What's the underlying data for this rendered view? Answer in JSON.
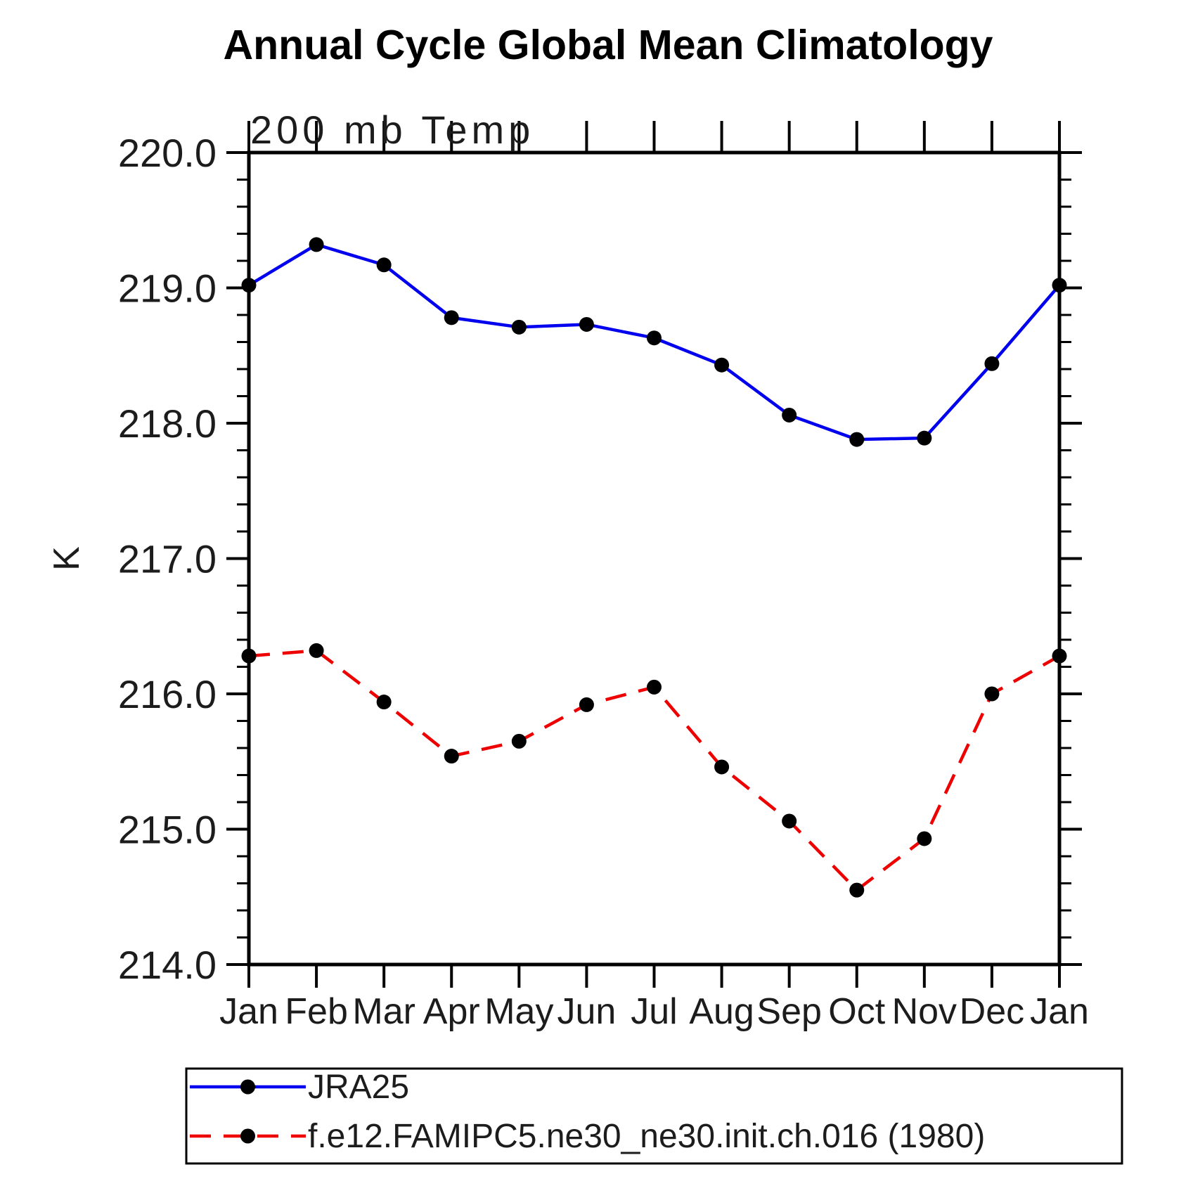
{
  "title": "Annual Cycle Global Mean Climatology",
  "subtitle": "200 mb Temp",
  "chart_data": {
    "type": "line",
    "title": "Annual Cycle Global Mean Climatology",
    "subtitle": "200 mb Temp",
    "ylabel": "K",
    "xlabel": "",
    "categories": [
      "Jan",
      "Feb",
      "Mar",
      "Apr",
      "May",
      "Jun",
      "Jul",
      "Aug",
      "Sep",
      "Oct",
      "Nov",
      "Dec",
      "Jan"
    ],
    "series": [
      {
        "name": "JRA25",
        "style": "solid",
        "color": "#0000ee",
        "values": [
          219.02,
          219.32,
          219.17,
          218.78,
          218.71,
          218.73,
          218.63,
          218.43,
          218.06,
          217.88,
          217.89,
          218.44,
          219.02
        ]
      },
      {
        "name": "f.e12.FAMIPC5.ne30_ne30.init.ch.016 (1980)",
        "style": "dashed",
        "color": "#ee0000",
        "values": [
          216.28,
          216.32,
          215.94,
          215.54,
          215.65,
          215.92,
          216.05,
          215.46,
          215.06,
          214.55,
          214.93,
          216.0,
          216.28
        ]
      }
    ],
    "ylim": [
      214.0,
      220.0
    ],
    "ytick_step": 1.0,
    "yminor_step": 0.2,
    "ytick_labels": [
      "214.0",
      "215.0",
      "216.0",
      "217.0",
      "218.0",
      "219.0",
      "220.0"
    ],
    "grid": false,
    "legend_position": "bottom",
    "marker": "filled-circle",
    "marker_color": "#000000",
    "axis_color": "#000000"
  }
}
